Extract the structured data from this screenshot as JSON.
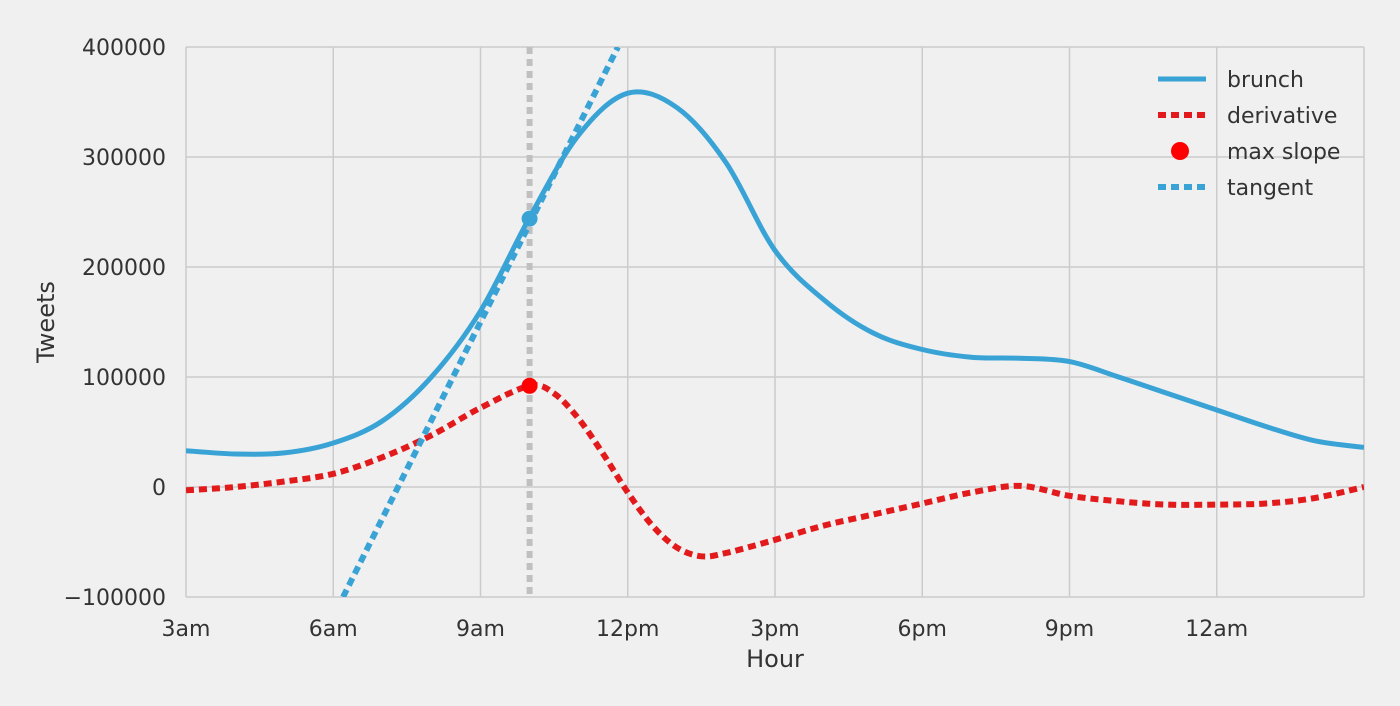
{
  "chart_data": {
    "type": "line",
    "xlabel": "Hour",
    "ylabel": "Tweets",
    "xlim": [
      3,
      27
    ],
    "ylim": [
      -100000,
      400000
    ],
    "x_ticks": [
      {
        "x": 3,
        "label": "3am"
      },
      {
        "x": 6,
        "label": "6am"
      },
      {
        "x": 9,
        "label": "9am"
      },
      {
        "x": 12,
        "label": "12pm"
      },
      {
        "x": 15,
        "label": "3pm"
      },
      {
        "x": 18,
        "label": "6pm"
      },
      {
        "x": 21,
        "label": "9pm"
      },
      {
        "x": 24,
        "label": "12am"
      }
    ],
    "y_ticks": [
      {
        "y": -100000,
        "label": "−100000"
      },
      {
        "y": 0,
        "label": "0"
      },
      {
        "y": 100000,
        "label": "100000"
      },
      {
        "y": 200000,
        "label": "200000"
      },
      {
        "y": 300000,
        "label": "300000"
      },
      {
        "y": 400000,
        "label": "400000"
      }
    ],
    "grid": true,
    "legend_position": "top-right",
    "colors": {
      "background": "#f0f0f0",
      "grid": "#cbcbcb",
      "brunch": "#3aa3d6",
      "derivative": "#e31a1c",
      "max_slope": "#ff0000",
      "tangent": "#3aa3d6",
      "vline": "#c0c0c0"
    },
    "series": [
      {
        "name": "brunch",
        "style": "solid",
        "x": [
          3,
          4,
          5,
          6,
          7,
          8,
          9,
          10,
          11,
          12,
          13,
          14,
          15,
          16,
          17,
          18,
          19,
          20,
          21,
          22,
          23,
          24,
          25,
          26,
          27
        ],
        "y": [
          33000,
          30000,
          31000,
          40000,
          60000,
          100000,
          160000,
          245000,
          320000,
          358000,
          345000,
          295000,
          215000,
          170000,
          140000,
          125000,
          118000,
          117000,
          114000,
          100000,
          85000,
          70000,
          55000,
          42000,
          36000
        ]
      },
      {
        "name": "derivative",
        "style": "dotted",
        "x": [
          3,
          4,
          5,
          6,
          7,
          8,
          9,
          10,
          10.5,
          11,
          11.5,
          12,
          12.5,
          13,
          13.5,
          14,
          15,
          16,
          17,
          18,
          19,
          20,
          21,
          22,
          23,
          24,
          25,
          26,
          27
        ],
        "y": [
          -3000,
          0,
          5000,
          12000,
          27000,
          47000,
          72000,
          92000,
          85000,
          62000,
          30000,
          -5000,
          -35000,
          -55000,
          -63000,
          -60000,
          -48000,
          -35000,
          -25000,
          -15000,
          -5000,
          1000,
          -8000,
          -13000,
          -16000,
          -16000,
          -15000,
          -10000,
          0
        ]
      },
      {
        "name": "max slope",
        "style": "marker",
        "x": [
          10
        ],
        "y": [
          92000
        ]
      },
      {
        "name": "tangent",
        "style": "dotted",
        "x": [
          6.2,
          11.8
        ],
        "y": [
          -100000,
          400000
        ]
      }
    ],
    "annotations": {
      "vline_x": 10,
      "brunch_point": {
        "x": 10,
        "y": 244000
      }
    }
  }
}
